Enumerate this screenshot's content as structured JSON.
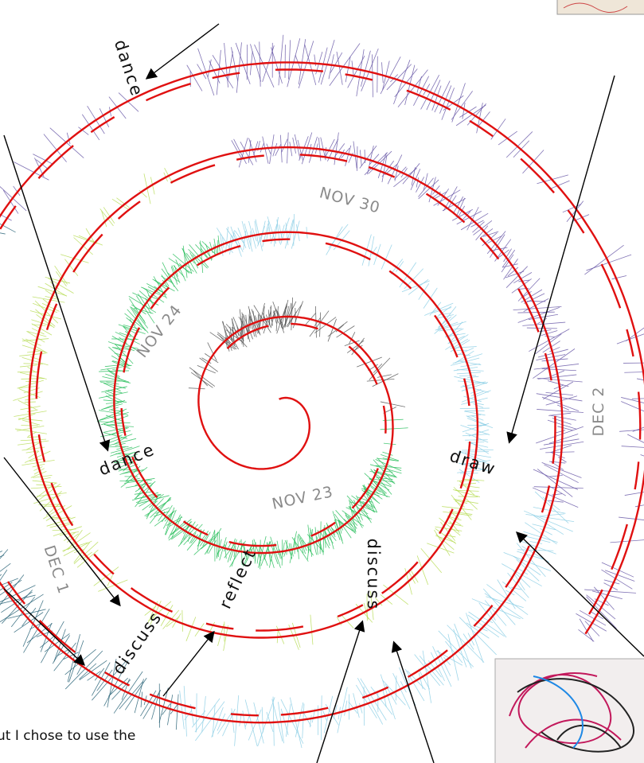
{
  "labels": {
    "activities": [
      "dance",
      "dance",
      "draw",
      "discuss",
      "discuss",
      "reflect"
    ],
    "dates": [
      "NOV 30",
      "NOV 24",
      "NOV 23",
      "DEC 2",
      "DEC 1"
    ]
  },
  "caption": "ut I chose to use the"
}
